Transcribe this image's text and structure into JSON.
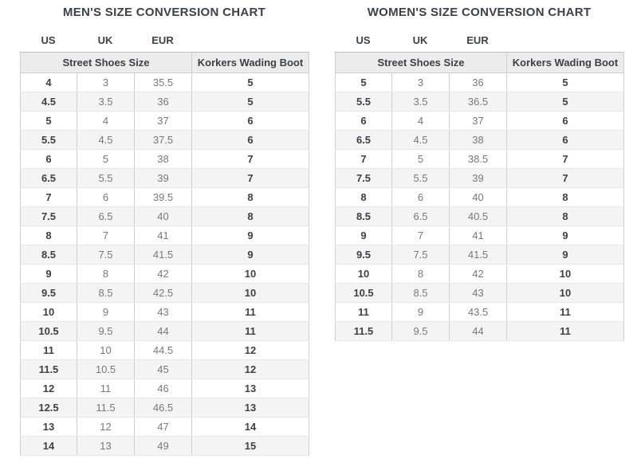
{
  "charts": [
    {
      "title": "MEN'S SIZE CONVERSION CHART",
      "column_labels": [
        "US",
        "UK",
        "EUR"
      ],
      "group_headers": [
        "Street Shoes Size",
        "Korkers Wading Boot"
      ],
      "rows": [
        [
          "4",
          "3",
          "35.5",
          "5"
        ],
        [
          "4.5",
          "3.5",
          "36",
          "5"
        ],
        [
          "5",
          "4",
          "37",
          "6"
        ],
        [
          "5.5",
          "4.5",
          "37.5",
          "6"
        ],
        [
          "6",
          "5",
          "38",
          "7"
        ],
        [
          "6.5",
          "5.5",
          "39",
          "7"
        ],
        [
          "7",
          "6",
          "39.5",
          "8"
        ],
        [
          "7.5",
          "6.5",
          "40",
          "8"
        ],
        [
          "8",
          "7",
          "41",
          "9"
        ],
        [
          "8.5",
          "7.5",
          "41.5",
          "9"
        ],
        [
          "9",
          "8",
          "42",
          "10"
        ],
        [
          "9.5",
          "8.5",
          "42.5",
          "10"
        ],
        [
          "10",
          "9",
          "43",
          "11"
        ],
        [
          "10.5",
          "9.5",
          "44",
          "11"
        ],
        [
          "11",
          "10",
          "44.5",
          "12"
        ],
        [
          "11.5",
          "10.5",
          "45",
          "12"
        ],
        [
          "12",
          "11",
          "46",
          "13"
        ],
        [
          "12.5",
          "11.5",
          "46.5",
          "13"
        ],
        [
          "13",
          "12",
          "47",
          "14"
        ],
        [
          "14",
          "13",
          "49",
          "15"
        ]
      ]
    },
    {
      "title": "WOMEN'S SIZE CONVERSION CHART",
      "column_labels": [
        "US",
        "UK",
        "EUR"
      ],
      "group_headers": [
        "Street Shoes Size",
        "Korkers Wading Boot"
      ],
      "rows": [
        [
          "5",
          "3",
          "36",
          "5"
        ],
        [
          "5.5",
          "3.5",
          "36.5",
          "5"
        ],
        [
          "6",
          "4",
          "37",
          "6"
        ],
        [
          "6.5",
          "4.5",
          "38",
          "6"
        ],
        [
          "7",
          "5",
          "38.5",
          "7"
        ],
        [
          "7.5",
          "5.5",
          "39",
          "7"
        ],
        [
          "8",
          "6",
          "40",
          "8"
        ],
        [
          "8.5",
          "6.5",
          "40.5",
          "8"
        ],
        [
          "9",
          "7",
          "41",
          "9"
        ],
        [
          "9.5",
          "7.5",
          "41.5",
          "9"
        ],
        [
          "10",
          "8",
          "42",
          "10"
        ],
        [
          "10.5",
          "8.5",
          "43",
          "10"
        ],
        [
          "11",
          "9",
          "43.5",
          "11"
        ],
        [
          "11.5",
          "9.5",
          "44",
          "11"
        ]
      ]
    }
  ],
  "colors": {
    "dark-text": "#3d4146",
    "light-text": "#75787d",
    "header-bg": "#ececec",
    "stripe-bg": "#f4f4f4",
    "border-v": "#cfcfcf",
    "border-h": "#e6e6e6",
    "border-top": "#bdbdbd"
  }
}
